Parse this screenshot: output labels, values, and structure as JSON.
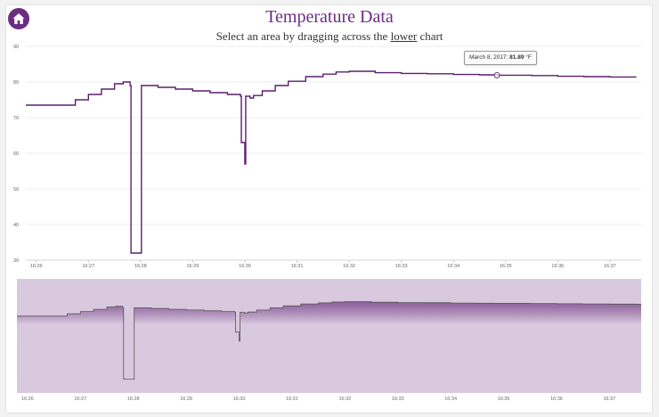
{
  "header": {
    "home_icon": "home-icon",
    "title": "Temperature Data",
    "subtitle_pre": "Select an area by dragging across the ",
    "subtitle_link": "lower",
    "subtitle_post": " chart"
  },
  "tooltip": {
    "date": "March 8, 2017:",
    "value": "81.89",
    "unit": "°F"
  },
  "colors": {
    "accent": "#6b2d83",
    "line": "#5c1f6e",
    "grid": "#e6e6e6",
    "area_fill": "#d9c9de",
    "area_top": "#7d4a8e"
  },
  "chart_data": [
    {
      "type": "line",
      "title": "",
      "xlabel": "",
      "ylabel": "",
      "ylim": [
        30,
        90
      ],
      "yticks": [
        30,
        40,
        50,
        60,
        70,
        80,
        90
      ],
      "xticks": [
        "16:26",
        "16:27",
        "16:28",
        "16:29",
        "16:30",
        "16:31",
        "16:32",
        "16:33",
        "16:34",
        "16:35",
        "16:36",
        "16:37"
      ],
      "xlim": [
        "16:25:48",
        "16:37:36"
      ],
      "grid": true,
      "series": [
        {
          "x": [
            "16:25:48",
            "16:26:30",
            "16:26:45",
            "16:27:00",
            "16:27:15",
            "16:27:30",
            "16:27:40",
            "16:27:48",
            "16:27:49",
            "16:28:00",
            "16:28:01",
            "16:28:20",
            "16:28:40",
            "16:29:00",
            "16:29:20",
            "16:29:40",
            "16:29:55",
            "16:29:56",
            "16:30:00",
            "16:30:01",
            "16:30:06",
            "16:30:10",
            "16:30:20",
            "16:30:35",
            "16:30:50",
            "16:31:10",
            "16:31:30",
            "16:31:45",
            "16:32:00",
            "16:32:30",
            "16:33:00",
            "16:33:30",
            "16:34:00",
            "16:34:30",
            "16:34:50",
            "16:35:30",
            "16:36:00",
            "16:36:30",
            "16:37:00",
            "16:37:30"
          ],
          "y": [
            73.5,
            73.5,
            75,
            76.5,
            78,
            79.5,
            80,
            79,
            32,
            32,
            79,
            78.5,
            78,
            77.5,
            77,
            76.5,
            76,
            63,
            57,
            76,
            75.5,
            76.2,
            77.5,
            79,
            80.2,
            81.5,
            82.2,
            82.8,
            83,
            82.6,
            82.4,
            82.3,
            82.1,
            82,
            81.89,
            81.8,
            81.6,
            81.5,
            81.4,
            81.3
          ]
        }
      ],
      "highlight": {
        "x": "16:34:50",
        "y": 81.89
      }
    },
    {
      "type": "area",
      "role": "navigator",
      "ylim": [
        30,
        90
      ],
      "xticks": [
        "16:26",
        "16:27",
        "16:28",
        "16:29",
        "16:30",
        "16:31",
        "16:32",
        "16:33",
        "16:34",
        "16:35",
        "16:36",
        "16:37"
      ],
      "xlim": [
        "16:25:48",
        "16:37:36"
      ],
      "series": [
        {
          "x": [
            "16:25:48",
            "16:26:30",
            "16:26:45",
            "16:27:00",
            "16:27:15",
            "16:27:30",
            "16:27:40",
            "16:27:48",
            "16:27:49",
            "16:28:00",
            "16:28:01",
            "16:28:20",
            "16:28:40",
            "16:29:00",
            "16:29:20",
            "16:29:40",
            "16:29:55",
            "16:29:56",
            "16:30:00",
            "16:30:01",
            "16:30:06",
            "16:30:10",
            "16:30:20",
            "16:30:35",
            "16:30:50",
            "16:31:10",
            "16:31:30",
            "16:31:45",
            "16:32:00",
            "16:32:30",
            "16:33:00",
            "16:33:30",
            "16:34:00",
            "16:34:30",
            "16:34:50",
            "16:35:30",
            "16:36:00",
            "16:36:30",
            "16:37:00",
            "16:37:30"
          ],
          "y": [
            73.5,
            73.5,
            75,
            76.5,
            78,
            79.5,
            80,
            79,
            32,
            32,
            79,
            78.5,
            78,
            77.5,
            77,
            76.5,
            76,
            63,
            57,
            76,
            75.5,
            76.2,
            77.5,
            79,
            80.2,
            81.5,
            82.2,
            82.8,
            83,
            82.6,
            82.4,
            82.3,
            82.1,
            82,
            81.89,
            81.8,
            81.6,
            81.5,
            81.4,
            81.3
          ]
        }
      ]
    }
  ]
}
